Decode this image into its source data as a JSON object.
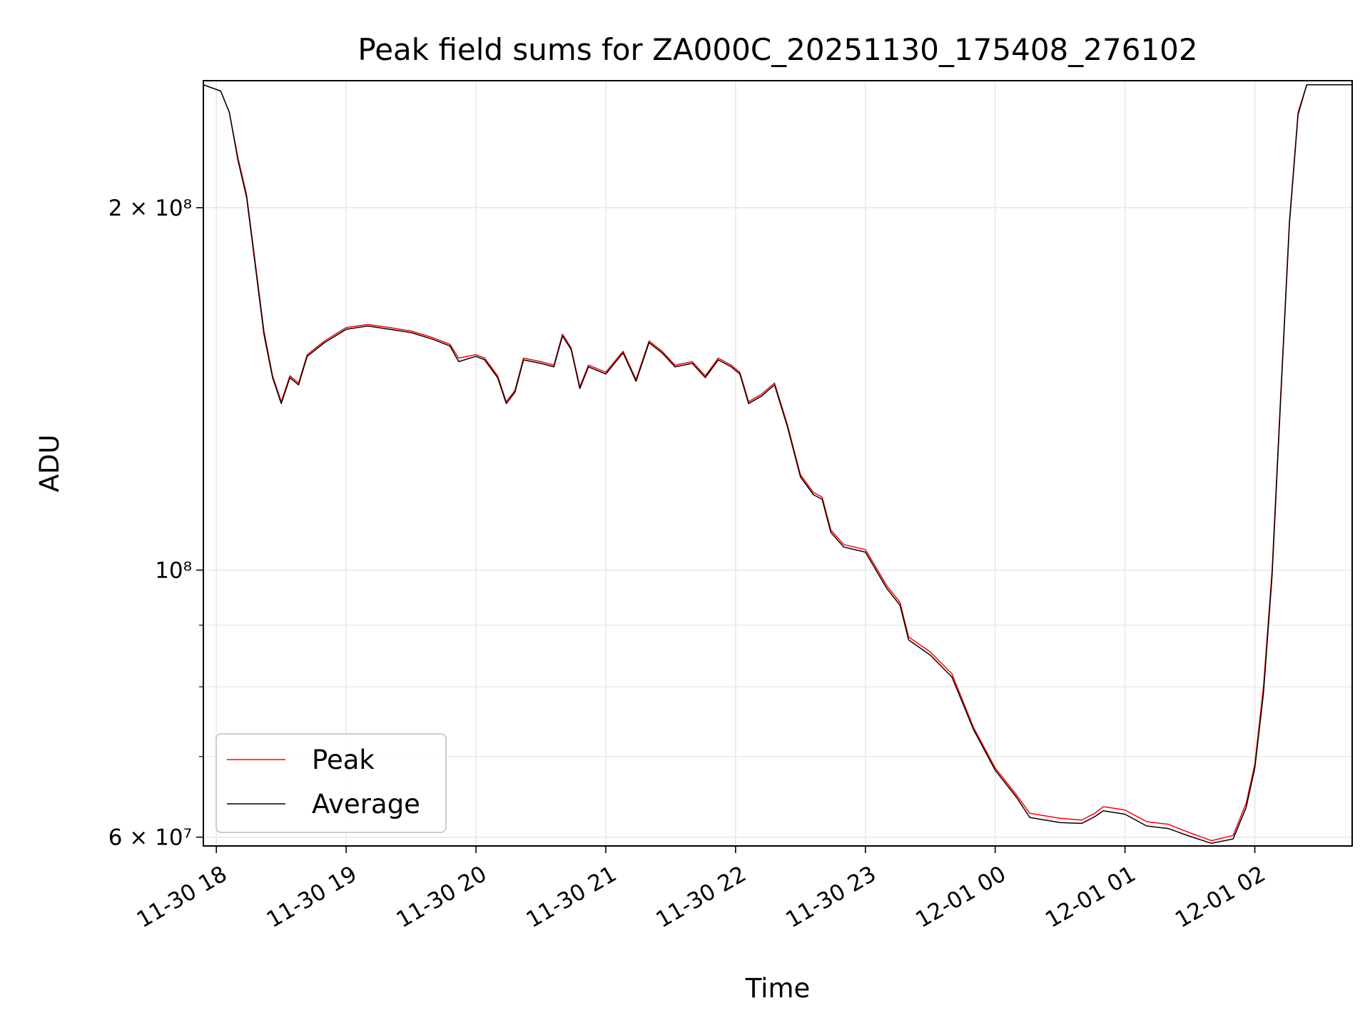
{
  "chart_data": {
    "type": "line",
    "title": "Peak field sums for ZA000C_20251130_175408_276102",
    "xlabel": "Time",
    "ylabel": "ADU",
    "yscale": "log",
    "grid": true,
    "legend_position": "lower-left",
    "xlim": [
      "2025-11-30 17:54",
      "2025-12-01 02:45"
    ],
    "ylim": [
      59000000,
      255000000
    ],
    "x_ticks": [
      {
        "t": "2025-11-30 18:00",
        "label": "11-30 18"
      },
      {
        "t": "2025-11-30 19:00",
        "label": "11-30 19"
      },
      {
        "t": "2025-11-30 20:00",
        "label": "11-30 20"
      },
      {
        "t": "2025-11-30 21:00",
        "label": "11-30 21"
      },
      {
        "t": "2025-11-30 22:00",
        "label": "11-30 22"
      },
      {
        "t": "2025-11-30 23:00",
        "label": "11-30 23"
      },
      {
        "t": "2025-12-01 00:00",
        "label": "12-01 00"
      },
      {
        "t": "2025-12-01 01:00",
        "label": "12-01 01"
      },
      {
        "t": "2025-12-01 02:00",
        "label": "12-01 02"
      }
    ],
    "y_ticks": [
      {
        "v": 60000000,
        "label": "6 × 10⁷"
      },
      {
        "v": 100000000,
        "label": "10⁸"
      },
      {
        "v": 200000000,
        "label": "2 × 10⁸"
      }
    ],
    "y_minor_ticks": [
      70000000,
      80000000,
      90000000
    ],
    "series": [
      {
        "name": "Peak",
        "color": "#ff0000",
        "points": [
          [
            "2025-11-30 17:54",
            253000000
          ],
          [
            "2025-11-30 18:02",
            250000000
          ],
          [
            "2025-11-30 18:06",
            240000000
          ],
          [
            "2025-11-30 18:10",
            220000000
          ],
          [
            "2025-11-30 18:14",
            205000000
          ],
          [
            "2025-11-30 18:18",
            180000000
          ],
          [
            "2025-11-30 18:22",
            158000000
          ],
          [
            "2025-11-30 18:26",
            145000000
          ],
          [
            "2025-11-30 18:30",
            138000000
          ],
          [
            "2025-11-30 18:34",
            145000000
          ],
          [
            "2025-11-30 18:38",
            143000000
          ],
          [
            "2025-11-30 18:42",
            151000000
          ],
          [
            "2025-11-30 18:50",
            155000000
          ],
          [
            "2025-11-30 19:00",
            159000000
          ],
          [
            "2025-11-30 19:10",
            160000000
          ],
          [
            "2025-11-30 19:20",
            159000000
          ],
          [
            "2025-11-30 19:30",
            158000000
          ],
          [
            "2025-11-30 19:40",
            156000000
          ],
          [
            "2025-11-30 19:48",
            154000000
          ],
          [
            "2025-11-30 19:52",
            150000000
          ],
          [
            "2025-11-30 20:00",
            151000000
          ],
          [
            "2025-11-30 20:04",
            150000000
          ],
          [
            "2025-11-30 20:10",
            145000000
          ],
          [
            "2025-11-30 20:14",
            138000000
          ],
          [
            "2025-11-30 20:18",
            141000000
          ],
          [
            "2025-11-30 20:22",
            150000000
          ],
          [
            "2025-11-30 20:30",
            149000000
          ],
          [
            "2025-11-30 20:36",
            148000000
          ],
          [
            "2025-11-30 20:40",
            157000000
          ],
          [
            "2025-11-30 20:44",
            153000000
          ],
          [
            "2025-11-30 20:48",
            142000000
          ],
          [
            "2025-11-30 20:52",
            148000000
          ],
          [
            "2025-11-30 21:00",
            146000000
          ],
          [
            "2025-11-30 21:08",
            152000000
          ],
          [
            "2025-11-30 21:14",
            144000000
          ],
          [
            "2025-11-30 21:20",
            155000000
          ],
          [
            "2025-11-30 21:26",
            152000000
          ],
          [
            "2025-11-30 21:32",
            148000000
          ],
          [
            "2025-11-30 21:40",
            149000000
          ],
          [
            "2025-11-30 21:46",
            145000000
          ],
          [
            "2025-11-30 21:52",
            150000000
          ],
          [
            "2025-11-30 21:58",
            148000000
          ],
          [
            "2025-11-30 22:02",
            146000000
          ],
          [
            "2025-11-30 22:06",
            138000000
          ],
          [
            "2025-11-30 22:12",
            140000000
          ],
          [
            "2025-11-30 22:18",
            143000000
          ],
          [
            "2025-11-30 22:24",
            132000000
          ],
          [
            "2025-11-30 22:30",
            120000000
          ],
          [
            "2025-11-30 22:36",
            116000000
          ],
          [
            "2025-11-30 22:40",
            115000000
          ],
          [
            "2025-11-30 22:44",
            108000000
          ],
          [
            "2025-11-30 22:50",
            105000000
          ],
          [
            "2025-11-30 23:00",
            104000000
          ],
          [
            "2025-11-30 23:10",
            97000000
          ],
          [
            "2025-11-30 23:16",
            94000000
          ],
          [
            "2025-11-30 23:20",
            88000000
          ],
          [
            "2025-11-30 23:30",
            85500000
          ],
          [
            "2025-11-30 23:40",
            82000000
          ],
          [
            "2025-11-30 23:50",
            74000000
          ],
          [
            "2025-12-01 00:00",
            68500000
          ],
          [
            "2025-12-01 00:10",
            65000000
          ],
          [
            "2025-12-01 00:16",
            62800000
          ],
          [
            "2025-12-01 00:30",
            62200000
          ],
          [
            "2025-12-01 00:40",
            62000000
          ],
          [
            "2025-12-01 00:46",
            62800000
          ],
          [
            "2025-12-01 00:50",
            63600000
          ],
          [
            "2025-12-01 01:00",
            63200000
          ],
          [
            "2025-12-01 01:10",
            61800000
          ],
          [
            "2025-12-01 01:20",
            61500000
          ],
          [
            "2025-12-01 01:30",
            60500000
          ],
          [
            "2025-12-01 01:40",
            59600000
          ],
          [
            "2025-12-01 01:50",
            60200000
          ],
          [
            "2025-12-01 01:56",
            64000000
          ],
          [
            "2025-12-01 02:00",
            69000000
          ],
          [
            "2025-12-01 02:04",
            80000000
          ],
          [
            "2025-12-01 02:08",
            100000000
          ],
          [
            "2025-12-01 02:12",
            140000000
          ],
          [
            "2025-12-01 02:16",
            195000000
          ],
          [
            "2025-12-01 02:20",
            240000000
          ],
          [
            "2025-12-01 02:24",
            253000000
          ],
          [
            "2025-12-01 02:45",
            253000000
          ]
        ]
      },
      {
        "name": "Average",
        "color": "#000000",
        "points": [
          [
            "2025-11-30 17:54",
            253000000
          ],
          [
            "2025-11-30 18:02",
            250000000
          ],
          [
            "2025-11-30 18:06",
            240000000
          ],
          [
            "2025-11-30 18:10",
            219000000
          ],
          [
            "2025-11-30 18:14",
            204000000
          ],
          [
            "2025-11-30 18:18",
            179000000
          ],
          [
            "2025-11-30 18:22",
            157000000
          ],
          [
            "2025-11-30 18:26",
            144500000
          ],
          [
            "2025-11-30 18:30",
            137500000
          ],
          [
            "2025-11-30 18:34",
            144500000
          ],
          [
            "2025-11-30 18:38",
            142500000
          ],
          [
            "2025-11-30 18:42",
            150500000
          ],
          [
            "2025-11-30 18:50",
            154500000
          ],
          [
            "2025-11-30 19:00",
            158500000
          ],
          [
            "2025-11-30 19:10",
            159500000
          ],
          [
            "2025-11-30 19:20",
            158500000
          ],
          [
            "2025-11-30 19:30",
            157500000
          ],
          [
            "2025-11-30 19:40",
            155500000
          ],
          [
            "2025-11-30 19:48",
            153500000
          ],
          [
            "2025-11-30 19:52",
            149000000
          ],
          [
            "2025-11-30 20:00",
            150500000
          ],
          [
            "2025-11-30 20:04",
            149500000
          ],
          [
            "2025-11-30 20:10",
            144500000
          ],
          [
            "2025-11-30 20:14",
            137500000
          ],
          [
            "2025-11-30 20:18",
            140500000
          ],
          [
            "2025-11-30 20:22",
            149500000
          ],
          [
            "2025-11-30 20:30",
            148500000
          ],
          [
            "2025-11-30 20:36",
            147500000
          ],
          [
            "2025-11-30 20:40",
            156500000
          ],
          [
            "2025-11-30 20:44",
            152500000
          ],
          [
            "2025-11-30 20:48",
            141500000
          ],
          [
            "2025-11-30 20:52",
            147500000
          ],
          [
            "2025-11-30 21:00",
            145500000
          ],
          [
            "2025-11-30 21:08",
            151500000
          ],
          [
            "2025-11-30 21:14",
            143500000
          ],
          [
            "2025-11-30 21:20",
            154500000
          ],
          [
            "2025-11-30 21:26",
            151500000
          ],
          [
            "2025-11-30 21:32",
            147500000
          ],
          [
            "2025-11-30 21:40",
            148500000
          ],
          [
            "2025-11-30 21:46",
            144500000
          ],
          [
            "2025-11-30 21:52",
            149500000
          ],
          [
            "2025-11-30 21:58",
            147500000
          ],
          [
            "2025-11-30 22:02",
            145500000
          ],
          [
            "2025-11-30 22:06",
            137500000
          ],
          [
            "2025-11-30 22:12",
            139500000
          ],
          [
            "2025-11-30 22:18",
            142500000
          ],
          [
            "2025-11-30 22:24",
            131500000
          ],
          [
            "2025-11-30 22:30",
            119500000
          ],
          [
            "2025-11-30 22:36",
            115500000
          ],
          [
            "2025-11-30 22:40",
            114500000
          ],
          [
            "2025-11-30 22:44",
            107500000
          ],
          [
            "2025-11-30 22:50",
            104500000
          ],
          [
            "2025-11-30 23:00",
            103500000
          ],
          [
            "2025-11-30 23:10",
            96500000
          ],
          [
            "2025-11-30 23:16",
            93500000
          ],
          [
            "2025-11-30 23:20",
            87500000
          ],
          [
            "2025-11-30 23:30",
            85000000
          ],
          [
            "2025-11-30 23:40",
            81500000
          ],
          [
            "2025-11-30 23:50",
            73700000
          ],
          [
            "2025-12-01 00:00",
            68200000
          ],
          [
            "2025-12-01 00:10",
            64700000
          ],
          [
            "2025-12-01 00:16",
            62300000
          ],
          [
            "2025-12-01 00:30",
            61700000
          ],
          [
            "2025-12-01 00:40",
            61600000
          ],
          [
            "2025-12-01 00:46",
            62400000
          ],
          [
            "2025-12-01 00:50",
            63100000
          ],
          [
            "2025-12-01 01:00",
            62700000
          ],
          [
            "2025-12-01 01:10",
            61300000
          ],
          [
            "2025-12-01 01:20",
            61000000
          ],
          [
            "2025-12-01 01:30",
            60100000
          ],
          [
            "2025-12-01 01:40",
            59300000
          ],
          [
            "2025-12-01 01:50",
            59800000
          ],
          [
            "2025-12-01 01:56",
            63500000
          ],
          [
            "2025-12-01 02:00",
            68500000
          ],
          [
            "2025-12-01 02:04",
            79000000
          ],
          [
            "2025-12-01 02:08",
            99000000
          ],
          [
            "2025-12-01 02:12",
            139000000
          ],
          [
            "2025-12-01 02:16",
            194000000
          ],
          [
            "2025-12-01 02:20",
            239000000
          ],
          [
            "2025-12-01 02:24",
            253000000
          ],
          [
            "2025-12-01 02:45",
            253000000
          ]
        ]
      }
    ]
  }
}
